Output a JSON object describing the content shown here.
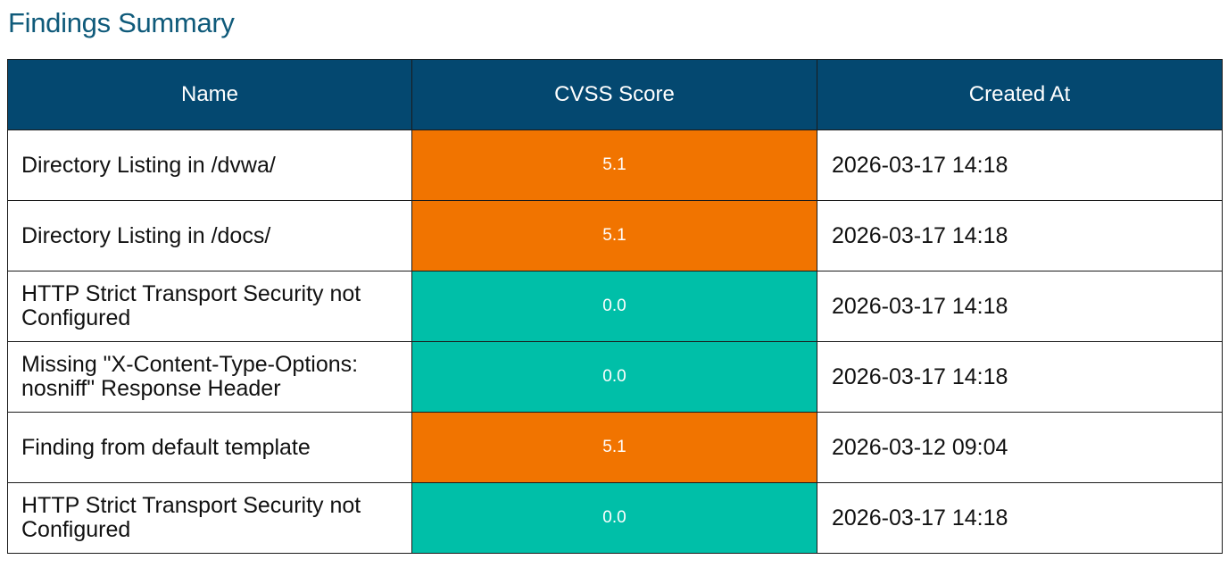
{
  "title": "Findings Summary",
  "table": {
    "columns": [
      "Name",
      "CVSS Score",
      "Created At"
    ],
    "rows": [
      {
        "name": "Directory Listing in /dvwa/",
        "score": "5.1",
        "created_at": "2026-03-17 14:18",
        "severity_color": "#f17400"
      },
      {
        "name": "Directory Listing in /docs/",
        "score": "5.1",
        "created_at": "2026-03-17 14:18",
        "severity_color": "#f17400"
      },
      {
        "name": "HTTP Strict Transport Security not Configured",
        "score": "0.0",
        "created_at": "2026-03-17 14:18",
        "severity_color": "#00bfa8"
      },
      {
        "name": "Missing \"X-Content-Type-Options: nosniff\" Response Header",
        "score": "0.0",
        "created_at": "2026-03-17 14:18",
        "severity_color": "#00bfa8"
      },
      {
        "name": "Finding from default template",
        "score": "5.1",
        "created_at": "2026-03-12 09:04",
        "severity_color": "#f17400"
      },
      {
        "name": "HTTP Strict Transport Security not Configured",
        "score": "0.0",
        "created_at": "2026-03-17 14:18",
        "severity_color": "#00bfa8"
      }
    ]
  },
  "colors": {
    "title": "#0f5a7a",
    "header_bg": "#044870",
    "medium": "#f17400",
    "none": "#00bfa8"
  }
}
